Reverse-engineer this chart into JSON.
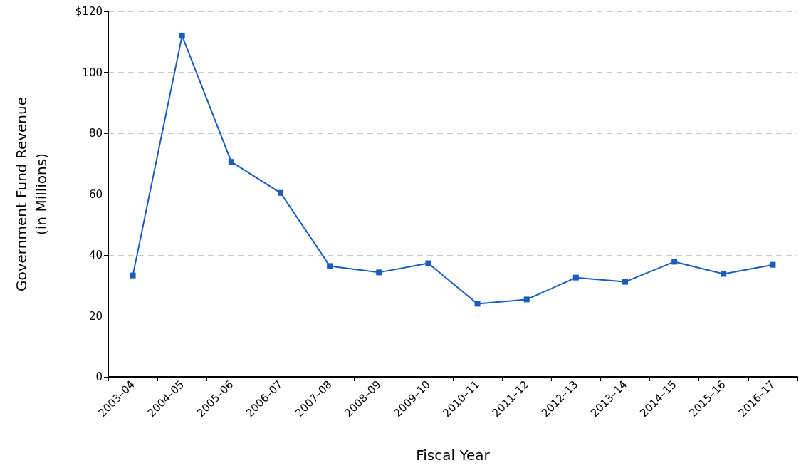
{
  "chart_data": {
    "type": "line",
    "xlabel": "Fiscal Year",
    "ylabel": "Government Fund Revenue\n(in Millions)",
    "categories": [
      "2003–04",
      "2004–05",
      "2005–06",
      "2006–07",
      "2007–08",
      "2008–09",
      "2009–10",
      "2010–11",
      "2011–12",
      "2012–13",
      "2013–14",
      "2014–15",
      "2015–16",
      "2016–17"
    ],
    "series": [
      {
        "color": "#1a5cbe",
        "values": [
          33.3,
          112,
          70.6,
          60.4,
          36.4,
          34.3,
          37.3,
          24,
          25.4,
          32.6,
          31.2,
          37.8,
          33.8,
          36.8
        ]
      }
    ],
    "ylim": [
      0,
      120
    ],
    "yticks": [
      0,
      20,
      40,
      60,
      80,
      100,
      {
        "value": 120,
        "label": "$120"
      }
    ],
    "grid": "y",
    "marker": "square",
    "line_style": "solid"
  }
}
